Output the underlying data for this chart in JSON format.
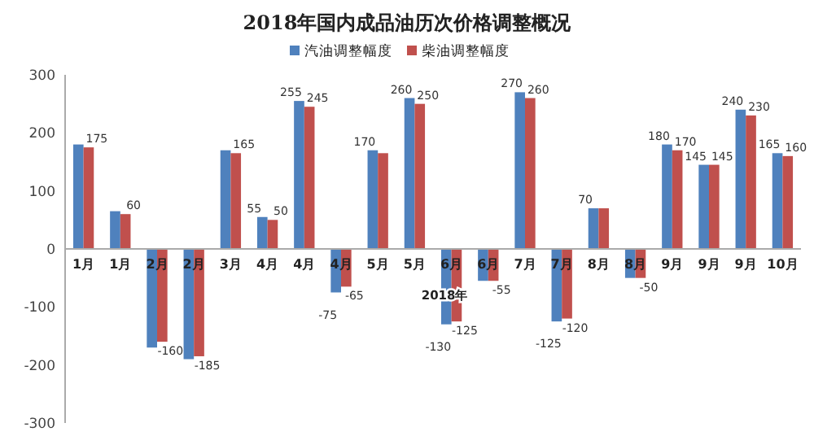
{
  "chart_data": {
    "type": "bar",
    "title": "2018年国内成品油历次价格调整概况",
    "categories": [
      "1月",
      "1月",
      "2月",
      "2月",
      "3月",
      "4月",
      "4月",
      "4月",
      "5月",
      "5月",
      "6月",
      "6月",
      "7月",
      "7月",
      "8月",
      "8月",
      "9月",
      "9月",
      "9月",
      "10月"
    ],
    "series": [
      {
        "name": "汽油调整幅度",
        "color": "#4f81bd",
        "values": [
          180,
          65,
          -170,
          -190,
          170,
          55,
          255,
          -75,
          170,
          260,
          -130,
          -55,
          270,
          -125,
          70,
          -50,
          180,
          145,
          240,
          165
        ],
        "value_labels": [
          null,
          null,
          null,
          null,
          null,
          "55",
          "255",
          "-75",
          "170",
          "260",
          "-130",
          null,
          "270",
          "-125",
          "70",
          null,
          "180",
          "145",
          "240",
          "165"
        ]
      },
      {
        "name": "柴油调整幅度",
        "color": "#c0504d",
        "values": [
          175,
          60,
          -160,
          -185,
          165,
          50,
          245,
          -65,
          165,
          250,
          -125,
          -55,
          260,
          -120,
          70,
          -50,
          170,
          145,
          230,
          160
        ],
        "value_labels": [
          "175",
          "60",
          "-160",
          "-185",
          "165",
          "50",
          "245",
          "-65",
          null,
          "250",
          "-125",
          "-55",
          "260",
          "-120",
          null,
          "-50",
          "170",
          "145",
          "230",
          "160"
        ]
      }
    ],
    "ylim": [
      -300,
      300
    ],
    "yticks": [
      -300,
      -200,
      -100,
      0,
      100,
      200,
      300
    ],
    "grid": false,
    "legend": "top",
    "annotations": [
      "2018年"
    ]
  }
}
